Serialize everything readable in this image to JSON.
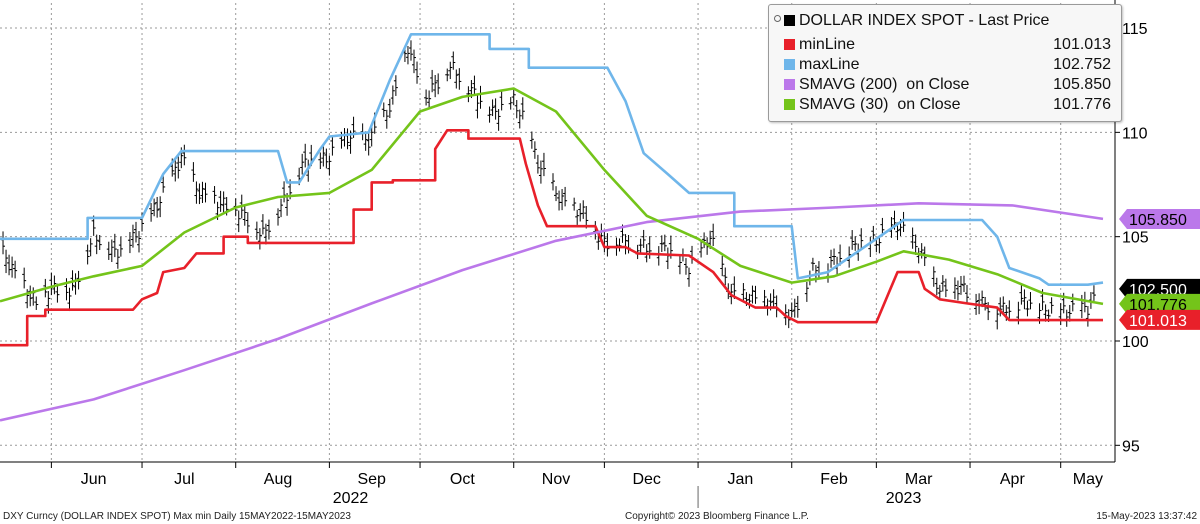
{
  "chart_data": {
    "type": "line",
    "title": "DOLLAR INDEX SPOT - Last Price",
    "x_range": [
      "2022-05-15",
      "2023-05-15"
    ],
    "ylim": [
      94.2,
      116.2
    ],
    "y_ticks": [
      95,
      100,
      105,
      110,
      115
    ],
    "grid": true,
    "legend_position": "top-right",
    "x_month_labels": [
      {
        "label": "Jun",
        "date": "2022-06-15"
      },
      {
        "label": "Jul",
        "date": "2022-07-15"
      },
      {
        "label": "Aug",
        "date": "2022-08-15"
      },
      {
        "label": "Sep",
        "date": "2022-09-15"
      },
      {
        "label": "Oct",
        "date": "2022-10-15"
      },
      {
        "label": "Nov",
        "date": "2022-11-15"
      },
      {
        "label": "Dec",
        "date": "2022-12-15"
      },
      {
        "label": "Jan",
        "date": "2023-01-15"
      },
      {
        "label": "Feb",
        "date": "2023-02-15"
      },
      {
        "label": "Mar",
        "date": "2023-03-15"
      },
      {
        "label": "Apr",
        "date": "2023-04-15"
      },
      {
        "label": "May",
        "date": "2023-05-10"
      }
    ],
    "x_year_labels": [
      {
        "label": "2022",
        "date": "2022-09-08"
      },
      {
        "label": "2023",
        "date": "2023-03-10"
      }
    ],
    "series": [
      {
        "name": "DOLLAR INDEX SPOT - Last Price",
        "style": "ohlc",
        "color": "#000000",
        "points": [
          [
            "2022-05-15",
            104.5
          ],
          [
            "2022-05-20",
            103.2
          ],
          [
            "2022-05-27",
            101.8
          ],
          [
            "2022-06-01",
            102.5
          ],
          [
            "2022-06-08",
            102.4
          ],
          [
            "2022-06-15",
            105.1
          ],
          [
            "2022-06-22",
            104.2
          ],
          [
            "2022-06-29",
            105.0
          ],
          [
            "2022-07-06",
            106.5
          ],
          [
            "2022-07-12",
            108.2
          ],
          [
            "2022-07-14",
            108.8
          ],
          [
            "2022-07-20",
            107.1
          ],
          [
            "2022-07-27",
            106.6
          ],
          [
            "2022-08-03",
            106.1
          ],
          [
            "2022-08-10",
            105.1
          ],
          [
            "2022-08-17",
            106.7
          ],
          [
            "2022-08-24",
            108.6
          ],
          [
            "2022-08-31",
            108.7
          ],
          [
            "2022-09-07",
            109.8
          ],
          [
            "2022-09-14",
            109.6
          ],
          [
            "2022-09-21",
            111.2
          ],
          [
            "2022-09-27",
            114.1
          ],
          [
            "2022-10-03",
            111.7
          ],
          [
            "2022-10-11",
            113.2
          ],
          [
            "2022-10-18",
            112.0
          ],
          [
            "2022-10-25",
            110.9
          ],
          [
            "2022-11-01",
            111.5
          ],
          [
            "2022-11-04",
            110.7
          ],
          [
            "2022-11-10",
            108.2
          ],
          [
            "2022-11-17",
            106.7
          ],
          [
            "2022-11-24",
            106.1
          ],
          [
            "2022-12-01",
            104.7
          ],
          [
            "2022-12-08",
            104.8
          ],
          [
            "2022-12-15",
            104.5
          ],
          [
            "2022-12-22",
            104.4
          ],
          [
            "2022-12-29",
            103.5
          ],
          [
            "2023-01-05",
            105.0
          ],
          [
            "2023-01-12",
            102.2
          ],
          [
            "2023-01-19",
            102.1
          ],
          [
            "2023-01-26",
            101.8
          ],
          [
            "2023-02-01",
            101.2
          ],
          [
            "2023-02-08",
            103.4
          ],
          [
            "2023-02-15",
            103.8
          ],
          [
            "2023-02-22",
            104.6
          ],
          [
            "2023-03-01",
            104.8
          ],
          [
            "2023-03-08",
            105.6
          ],
          [
            "2023-03-15",
            104.4
          ],
          [
            "2023-03-22",
            102.5
          ],
          [
            "2023-03-29",
            102.6
          ],
          [
            "2023-04-05",
            101.8
          ],
          [
            "2023-04-12",
            101.5
          ],
          [
            "2023-04-19",
            101.9
          ],
          [
            "2023-04-26",
            101.5
          ],
          [
            "2023-05-03",
            101.4
          ],
          [
            "2023-05-10",
            101.6
          ],
          [
            "2023-05-15",
            102.5
          ]
        ]
      },
      {
        "name": "minLine",
        "color": "#e8202a",
        "points": [
          [
            "2022-05-15",
            99.8
          ],
          [
            "2022-05-24",
            99.8
          ],
          [
            "2022-05-24",
            101.2
          ],
          [
            "2022-05-30",
            101.2
          ],
          [
            "2022-05-30",
            101.5
          ],
          [
            "2022-06-28",
            101.5
          ],
          [
            "2022-07-01",
            102.0
          ],
          [
            "2022-07-06",
            102.3
          ],
          [
            "2022-07-08",
            103.3
          ],
          [
            "2022-07-15",
            103.5
          ],
          [
            "2022-07-19",
            104.2
          ],
          [
            "2022-07-28",
            104.2
          ],
          [
            "2022-07-28",
            105.0
          ],
          [
            "2022-08-05",
            105.0
          ],
          [
            "2022-08-05",
            104.7
          ],
          [
            "2022-09-09",
            104.7
          ],
          [
            "2022-09-09",
            106.3
          ],
          [
            "2022-09-15",
            106.3
          ],
          [
            "2022-09-15",
            107.6
          ],
          [
            "2022-09-22",
            107.6
          ],
          [
            "2022-09-22",
            107.7
          ],
          [
            "2022-10-06",
            107.7
          ],
          [
            "2022-10-06",
            109.2
          ],
          [
            "2022-10-10",
            110.1
          ],
          [
            "2022-10-17",
            110.1
          ],
          [
            "2022-10-17",
            109.7
          ],
          [
            "2022-11-03",
            109.7
          ],
          [
            "2022-11-05",
            108.5
          ],
          [
            "2022-11-09",
            106.5
          ],
          [
            "2022-11-12",
            105.5
          ],
          [
            "2022-11-28",
            105.5
          ],
          [
            "2022-12-01",
            104.5
          ],
          [
            "2022-12-08",
            104.5
          ],
          [
            "2022-12-12",
            104.2
          ],
          [
            "2022-12-29",
            104.1
          ],
          [
            "2023-01-06",
            103.3
          ],
          [
            "2023-01-12",
            102.2
          ],
          [
            "2023-01-20",
            101.6
          ],
          [
            "2023-01-27",
            101.6
          ],
          [
            "2023-01-30",
            101.2
          ],
          [
            "2023-02-03",
            100.9
          ],
          [
            "2023-03-01",
            100.9
          ],
          [
            "2023-03-08",
            103.3
          ],
          [
            "2023-03-15",
            103.3
          ],
          [
            "2023-03-17",
            102.5
          ],
          [
            "2023-03-22",
            102.0
          ],
          [
            "2023-03-31",
            101.8
          ],
          [
            "2023-04-10",
            101.6
          ],
          [
            "2023-04-14",
            101.0
          ],
          [
            "2023-05-10",
            101.0
          ],
          [
            "2023-05-15",
            101.0
          ]
        ]
      },
      {
        "name": "maxLine",
        "color": "#6fb6ea",
        "points": [
          [
            "2022-05-15",
            104.9
          ],
          [
            "2022-06-13",
            104.9
          ],
          [
            "2022-06-13",
            105.9
          ],
          [
            "2022-07-01",
            105.9
          ],
          [
            "2022-07-08",
            108.0
          ],
          [
            "2022-07-14",
            109.1
          ],
          [
            "2022-08-15",
            109.1
          ],
          [
            "2022-08-18",
            107.6
          ],
          [
            "2022-08-22",
            107.6
          ],
          [
            "2022-08-29",
            109.2
          ],
          [
            "2022-09-01",
            109.8
          ],
          [
            "2022-09-14",
            110.0
          ],
          [
            "2022-09-21",
            112.5
          ],
          [
            "2022-09-28",
            114.7
          ],
          [
            "2022-10-24",
            114.7
          ],
          [
            "2022-10-24",
            114.0
          ],
          [
            "2022-11-06",
            114.0
          ],
          [
            "2022-11-06",
            113.1
          ],
          [
            "2022-12-02",
            113.1
          ],
          [
            "2022-12-08",
            111.5
          ],
          [
            "2022-12-14",
            109.0
          ],
          [
            "2022-12-22",
            108.0
          ],
          [
            "2022-12-29",
            107.1
          ],
          [
            "2023-01-13",
            107.1
          ],
          [
            "2023-01-13",
            105.5
          ],
          [
            "2023-02-01",
            105.5
          ],
          [
            "2023-02-03",
            103.0
          ],
          [
            "2023-02-13",
            103.3
          ],
          [
            "2023-03-10",
            105.8
          ],
          [
            "2023-04-05",
            105.8
          ],
          [
            "2023-04-10",
            105.0
          ],
          [
            "2023-04-14",
            103.5
          ],
          [
            "2023-04-24",
            103.0
          ],
          [
            "2023-04-27",
            102.7
          ],
          [
            "2023-05-10",
            102.7
          ],
          [
            "2023-05-15",
            102.8
          ]
        ]
      },
      {
        "name": "SMAVG (200)  on Close",
        "color": "#bb78ea",
        "points": [
          [
            "2022-05-15",
            96.2
          ],
          [
            "2022-06-15",
            97.2
          ],
          [
            "2022-07-15",
            98.6
          ],
          [
            "2022-08-15",
            100.1
          ],
          [
            "2022-09-15",
            101.8
          ],
          [
            "2022-10-15",
            103.4
          ],
          [
            "2022-11-15",
            104.8
          ],
          [
            "2022-12-15",
            105.7
          ],
          [
            "2023-01-15",
            106.2
          ],
          [
            "2023-02-15",
            106.4
          ],
          [
            "2023-03-15",
            106.6
          ],
          [
            "2023-04-15",
            106.5
          ],
          [
            "2023-05-15",
            105.85
          ]
        ]
      },
      {
        "name": "SMAVG (30)  on Close",
        "color": "#74c41a",
        "points": [
          [
            "2022-05-15",
            101.9
          ],
          [
            "2022-06-01",
            102.6
          ],
          [
            "2022-06-15",
            103.1
          ],
          [
            "2022-07-01",
            103.6
          ],
          [
            "2022-07-15",
            105.2
          ],
          [
            "2022-08-01",
            106.4
          ],
          [
            "2022-08-15",
            106.9
          ],
          [
            "2022-09-01",
            107.1
          ],
          [
            "2022-09-15",
            108.2
          ],
          [
            "2022-10-01",
            111.0
          ],
          [
            "2022-10-15",
            111.7
          ],
          [
            "2022-11-01",
            112.1
          ],
          [
            "2022-11-15",
            111.0
          ],
          [
            "2022-12-01",
            108.2
          ],
          [
            "2022-12-15",
            106.0
          ],
          [
            "2023-01-01",
            104.9
          ],
          [
            "2023-01-15",
            103.6
          ],
          [
            "2023-02-01",
            102.8
          ],
          [
            "2023-02-15",
            103.1
          ],
          [
            "2023-03-01",
            103.8
          ],
          [
            "2023-03-10",
            104.3
          ],
          [
            "2023-03-25",
            103.9
          ],
          [
            "2023-04-10",
            103.2
          ],
          [
            "2023-04-25",
            102.3
          ],
          [
            "2023-05-15",
            101.776
          ]
        ]
      }
    ],
    "legend": [
      {
        "name": "DOLLAR INDEX SPOT - Last Price",
        "value": "",
        "color": "#000000"
      },
      {
        "name": "minLine",
        "value": "101.013",
        "color": "#e8202a"
      },
      {
        "name": "maxLine",
        "value": "102.752",
        "color": "#6fb6ea"
      },
      {
        "name": "SMAVG (200)  on Close",
        "value": "105.850",
        "color": "#bb78ea"
      },
      {
        "name": "SMAVG (30)  on Close",
        "value": "101.776",
        "color": "#74c41a"
      }
    ],
    "value_tags": [
      {
        "label": "105.850",
        "value": 105.85,
        "color": "#bb78ea",
        "text_color": "#000000",
        "shift": 0
      },
      {
        "label": "102.500",
        "value": 102.5,
        "color": "#000000",
        "text_color": "#ffffff",
        "shift": 0
      },
      {
        "label": "101.776",
        "value": 101.776,
        "color": "#74c41a",
        "text_color": "#000000",
        "shift": -1
      },
      {
        "label": "101.013",
        "value": 101.013,
        "color": "#e8202a",
        "text_color": "#ffffff",
        "shift": 0
      }
    ]
  },
  "footer": {
    "left": "DXY Curncy (DOLLAR INDEX SPOT) Max min  Daily 15MAY2022-15MAY2023",
    "center": "Copyright© 2023 Bloomberg Finance L.P.",
    "right": "15-May-2023 13:37:42"
  }
}
